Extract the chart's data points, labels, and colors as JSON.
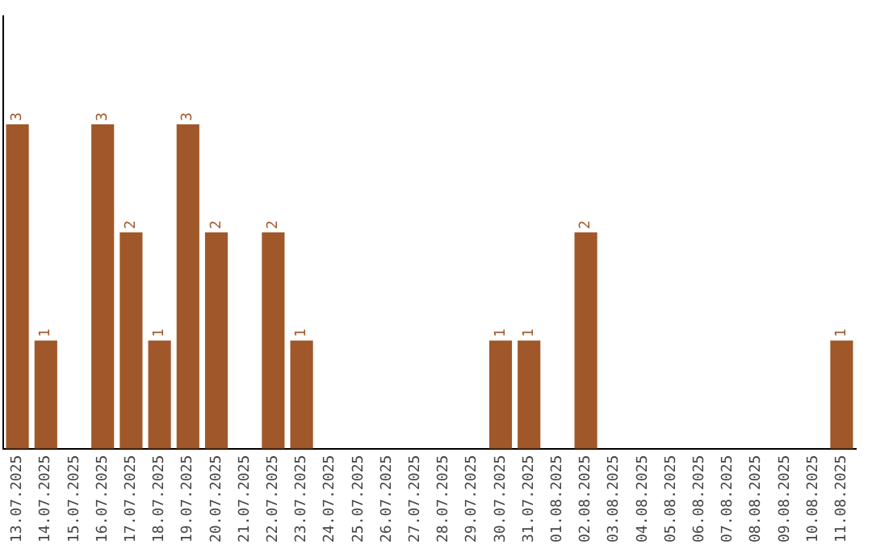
{
  "chart_data": {
    "type": "bar",
    "categories": [
      "13.07.2025",
      "14.07.2025",
      "15.07.2025",
      "16.07.2025",
      "17.07.2025",
      "18.07.2025",
      "19.07.2025",
      "20.07.2025",
      "21.07.2025",
      "22.07.2025",
      "23.07.2025",
      "24.07.2025",
      "25.07.2025",
      "26.07.2025",
      "27.07.2025",
      "28.07.2025",
      "29.07.2025",
      "30.07.2025",
      "31.07.2025",
      "01.08.2025",
      "02.08.2025",
      "03.08.2025",
      "04.08.2025",
      "05.08.2025",
      "06.08.2025",
      "07.08.2025",
      "08.08.2025",
      "09.08.2025",
      "10.08.2025",
      "11.08.2025"
    ],
    "values": [
      3,
      1,
      0,
      3,
      2,
      1,
      3,
      2,
      0,
      2,
      1,
      0,
      0,
      0,
      0,
      0,
      0,
      1,
      1,
      0,
      2,
      0,
      0,
      0,
      0,
      0,
      0,
      0,
      0,
      1
    ],
    "value_labels": [
      "3",
      "1",
      null,
      "3",
      "2",
      "1",
      "3",
      "2",
      null,
      "2",
      "1",
      null,
      null,
      null,
      null,
      null,
      null,
      "1",
      "1",
      null,
      "2",
      null,
      null,
      null,
      null,
      null,
      null,
      null,
      null,
      "1"
    ],
    "color": "#a0582a",
    "grid": false,
    "legend": false,
    "tick_labels": "x"
  }
}
